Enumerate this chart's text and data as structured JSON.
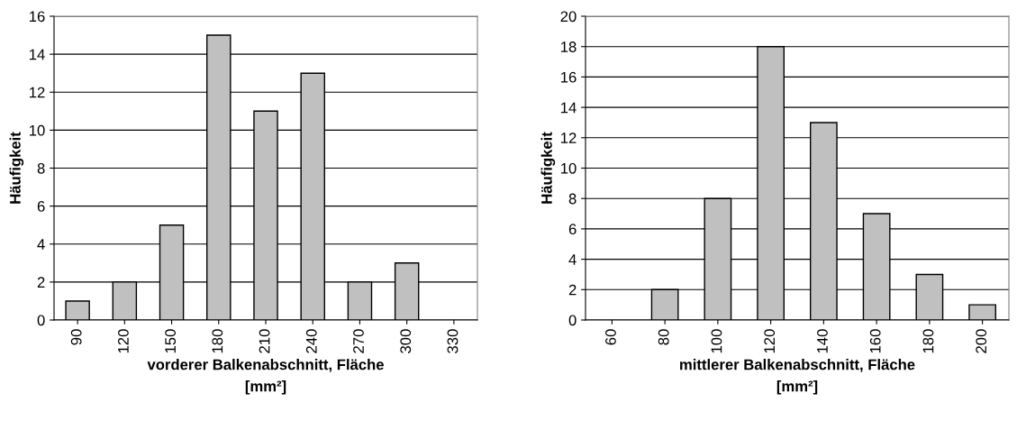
{
  "chart_data": [
    {
      "type": "bar",
      "categories": [
        "90",
        "120",
        "150",
        "180",
        "210",
        "240",
        "270",
        "300",
        "330"
      ],
      "values": [
        1,
        2,
        5,
        15,
        11,
        13,
        2,
        3,
        0
      ],
      "color": "#c0c0c0",
      "xlabel": "vorderer Balkenabschnitt, Fläche\n[mm²]",
      "ylabel": "Häufigkeit",
      "ylim": [
        0,
        16
      ],
      "yticks": [
        0,
        2,
        4,
        6,
        8,
        10,
        12,
        14,
        16
      ],
      "grid": "y",
      "legend": false
    },
    {
      "type": "bar",
      "categories": [
        "60",
        "80",
        "100",
        "120",
        "140",
        "160",
        "180",
        "200"
      ],
      "values": [
        0,
        2,
        8,
        18,
        13,
        7,
        3,
        1
      ],
      "color": "#c0c0c0",
      "xlabel": "mittlerer Balkenabschnitt, Fläche\n[mm²]",
      "ylabel": "Häufigkeit",
      "ylim": [
        0,
        20
      ],
      "yticks": [
        0,
        2,
        4,
        6,
        8,
        10,
        12,
        14,
        16,
        18,
        20
      ],
      "grid": "y",
      "legend": false
    }
  ]
}
